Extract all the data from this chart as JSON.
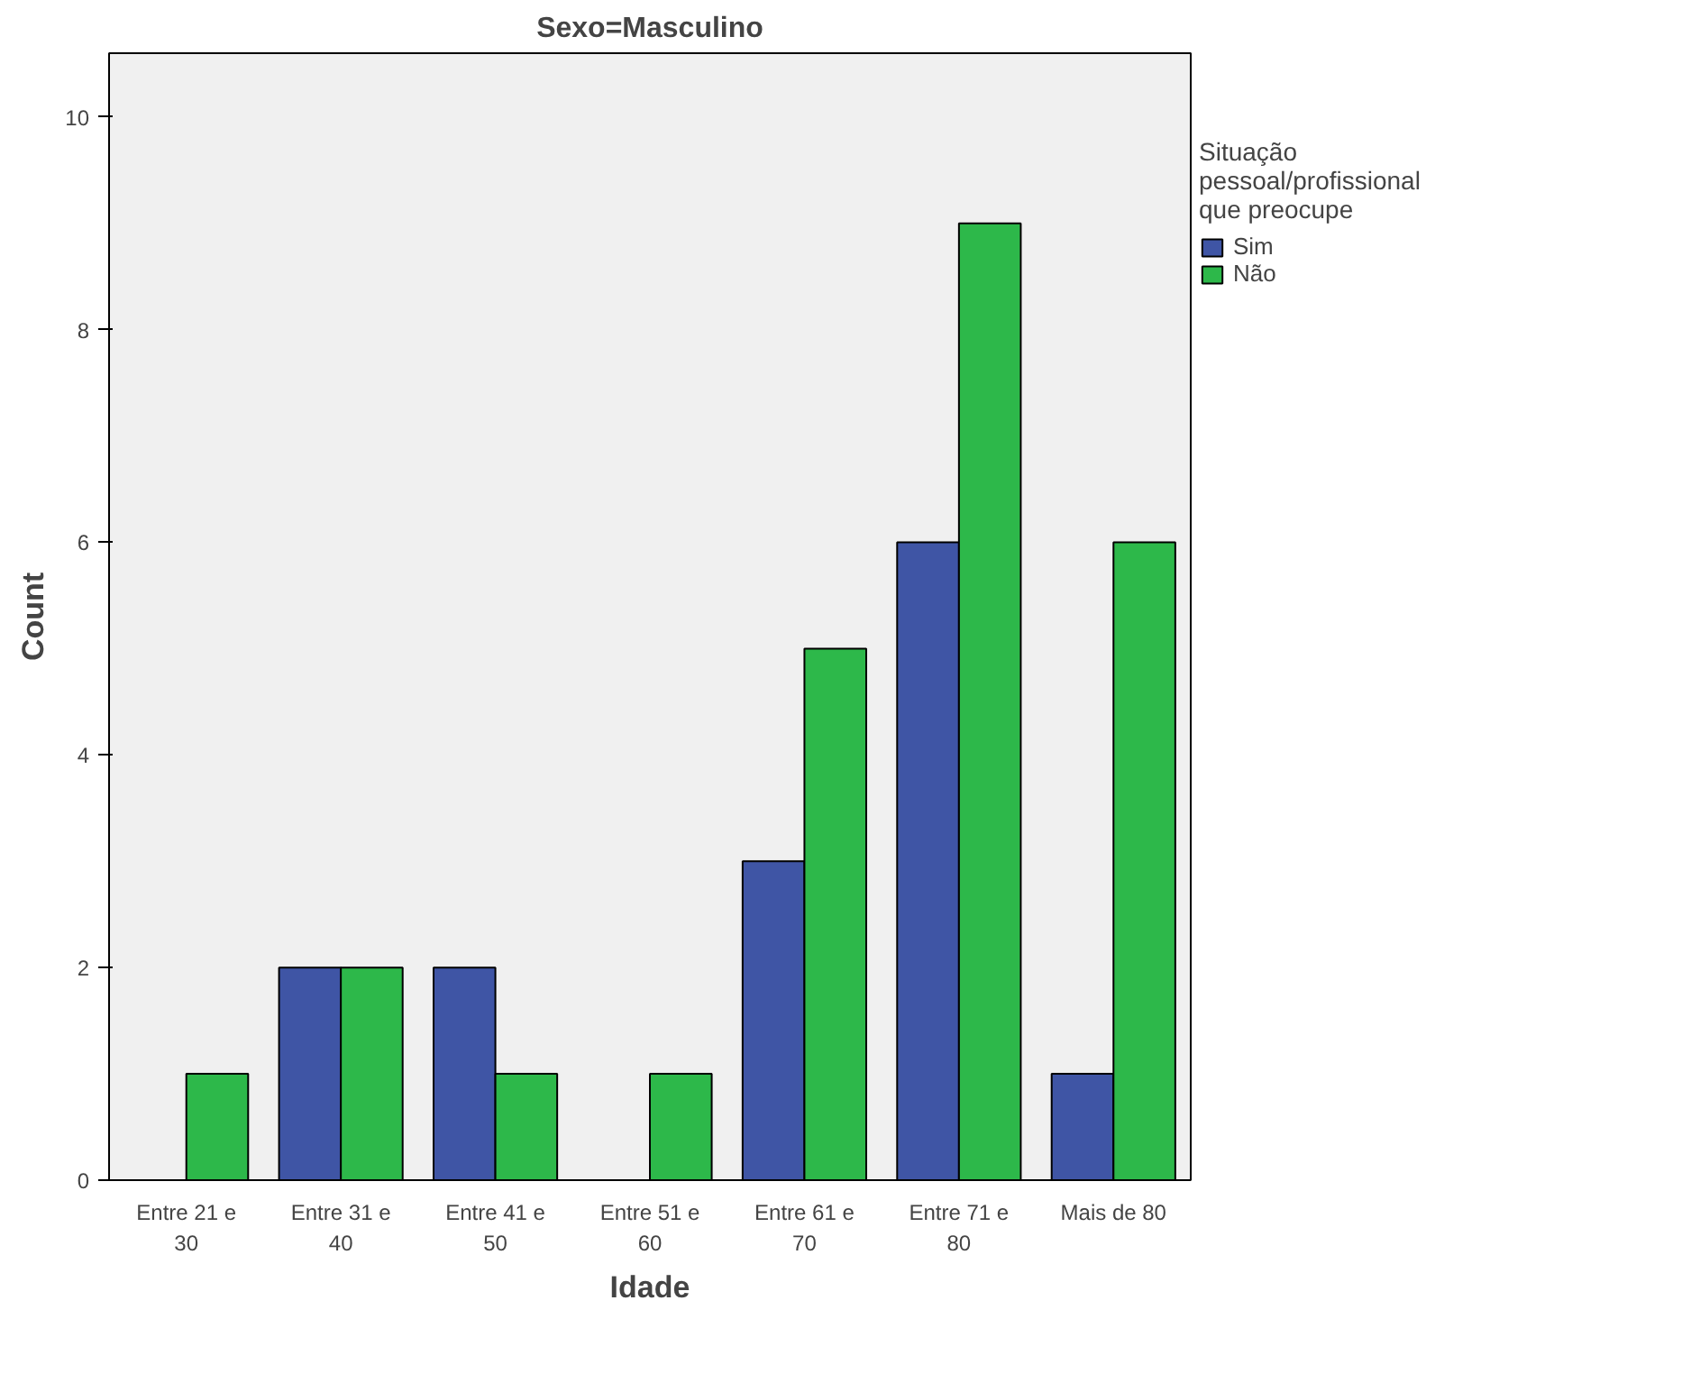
{
  "chart_data": {
    "type": "bar",
    "title": "Sexo=Masculino",
    "xlabel": "Idade",
    "ylabel": "Count",
    "legend_title": "Situação pessoal/profissional que preocupe",
    "categories": [
      "Entre 21 e 30",
      "Entre 31 e 40",
      "Entre 41 e 50",
      "Entre 51 e 60",
      "Entre 61 e 70",
      "Entre 71 e 80",
      "Mais de 80"
    ],
    "series": [
      {
        "name": "Sim",
        "color": "#3f55a5",
        "values": [
          null,
          2,
          2,
          null,
          3,
          6,
          1
        ]
      },
      {
        "name": "Não",
        "color": "#2db84a",
        "values": [
          1,
          2,
          1,
          1,
          5,
          9,
          6
        ]
      }
    ],
    "ylim": [
      0,
      10.6
    ],
    "yticks": [
      0,
      2,
      4,
      6,
      8,
      10
    ],
    "grid": false,
    "legend": "top right"
  }
}
